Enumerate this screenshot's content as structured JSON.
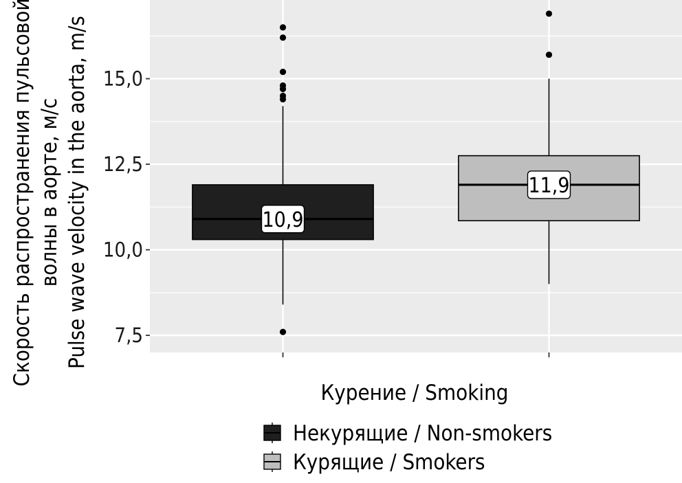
{
  "chart_data": {
    "type": "boxplot",
    "xlabel": "Курение / Smoking",
    "ylabel_lines": [
      "Скорость распространения пульсовой",
      "волны в аорте, м/с",
      "Pulse wave velocity in the aorta, m/s"
    ],
    "ylim": [
      7.0,
      17.3
    ],
    "y_ticks": [
      {
        "value": 7.5,
        "label": "7,5"
      },
      {
        "value": 10.0,
        "label": "10,0"
      },
      {
        "value": 12.5,
        "label": "12,5"
      },
      {
        "value": 15.0,
        "label": "15,0"
      }
    ],
    "grid": true,
    "legend_position": "bottom",
    "series": [
      {
        "name": "Некурящие / Non-smokers",
        "color": "#1f1f1f",
        "q1": 10.3,
        "median": 10.9,
        "q3": 11.9,
        "whisker_low": 8.4,
        "whisker_high": 14.2,
        "outliers": [
          7.6,
          14.4,
          14.5,
          14.7,
          14.8,
          15.2,
          16.2,
          16.5
        ],
        "median_label": "10,9"
      },
      {
        "name": "Курящие / Smokers",
        "color": "#bebebe",
        "q1": 10.85,
        "median": 11.9,
        "q3": 12.75,
        "whisker_low": 9.0,
        "whisker_high": 15.0,
        "outliers": [
          15.7,
          16.9
        ],
        "median_label": "11,9"
      }
    ]
  }
}
